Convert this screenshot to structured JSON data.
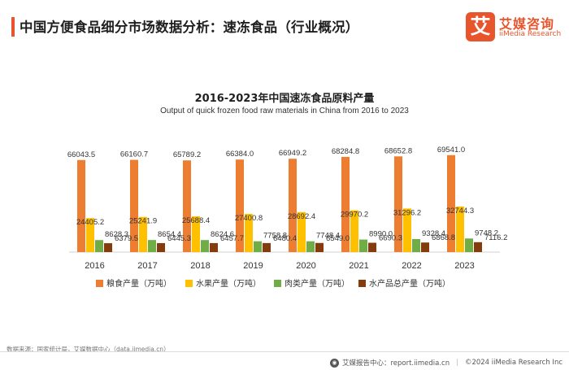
{
  "header": {
    "title": "中国方便食品细分市场数据分析：速冻食品（行业概况）"
  },
  "logo": {
    "mark": "艾",
    "name_cn": "艾媒咨询",
    "name_en": "iiMedia Research"
  },
  "footer": {
    "source": "数据来源：国家统计局，艾媒数据中心（data.iimedia.cn）",
    "report_center": "艾媒报告中心：report.iimedia.cn",
    "copyright": "©2024  iiMedia Research Inc"
  },
  "colors": {
    "accent": "#e8542c",
    "grain": "#ed7d31",
    "fruit": "#ffc000",
    "meat": "#70ad47",
    "aquatic": "#843c0c"
  },
  "chart_data": {
    "type": "bar",
    "title": "2016-2023年中国速冻食品原料产量",
    "subtitle": "Output of quick frozen food raw materials in China from 2016 to 2023",
    "categories": [
      "2016",
      "2017",
      "2018",
      "2019",
      "2020",
      "2021",
      "2022",
      "2023"
    ],
    "series": [
      {
        "name": "粮食产量（万吨）",
        "color": "#ed7d31",
        "values": [
          66043.5,
          66160.7,
          65789.2,
          66384.0,
          66949.2,
          68284.8,
          68652.8,
          69541.0
        ],
        "labels": [
          "66043.5",
          "66160.7",
          "65789.2",
          "66384.0",
          "66949.2",
          "68284.8",
          "68652.8",
          "69541.0"
        ]
      },
      {
        "name": "水果产量（万吨）",
        "color": "#ffc000",
        "values": [
          24405.2,
          25241.9,
          25688.4,
          27400.8,
          28692.4,
          29970.2,
          31296.2,
          32744.3
        ],
        "labels": [
          "24405.2",
          "25241.9",
          "25688.4",
          "27400.8",
          "28692.4",
          "29970.2",
          "31296.2",
          "32744.3"
        ]
      },
      {
        "name": "肉类产量（万吨）",
        "color": "#70ad47",
        "values": [
          8628.3,
          8654.4,
          8624.6,
          7758.8,
          7748.4,
          8990.0,
          9328.4,
          9748.2
        ],
        "labels": [
          "8628.3",
          "8654.4",
          "8624.6",
          "7758.8",
          "7748.4",
          "8990.0",
          "9328.4",
          "9748.2"
        ]
      },
      {
        "name": "水产品总产量（万吨）",
        "color": "#843c0c",
        "values": [
          6379.5,
          6445.3,
          6457.7,
          6480.4,
          6549.0,
          6690.3,
          6868.8,
          7116.2
        ],
        "labels": [
          "6379.5",
          "6445.3",
          "6457.7",
          "6480.4",
          "6549.0",
          "6690.3",
          "6868.8",
          "7116.2"
        ]
      }
    ],
    "legend_position": "bottom",
    "grid": false
  }
}
